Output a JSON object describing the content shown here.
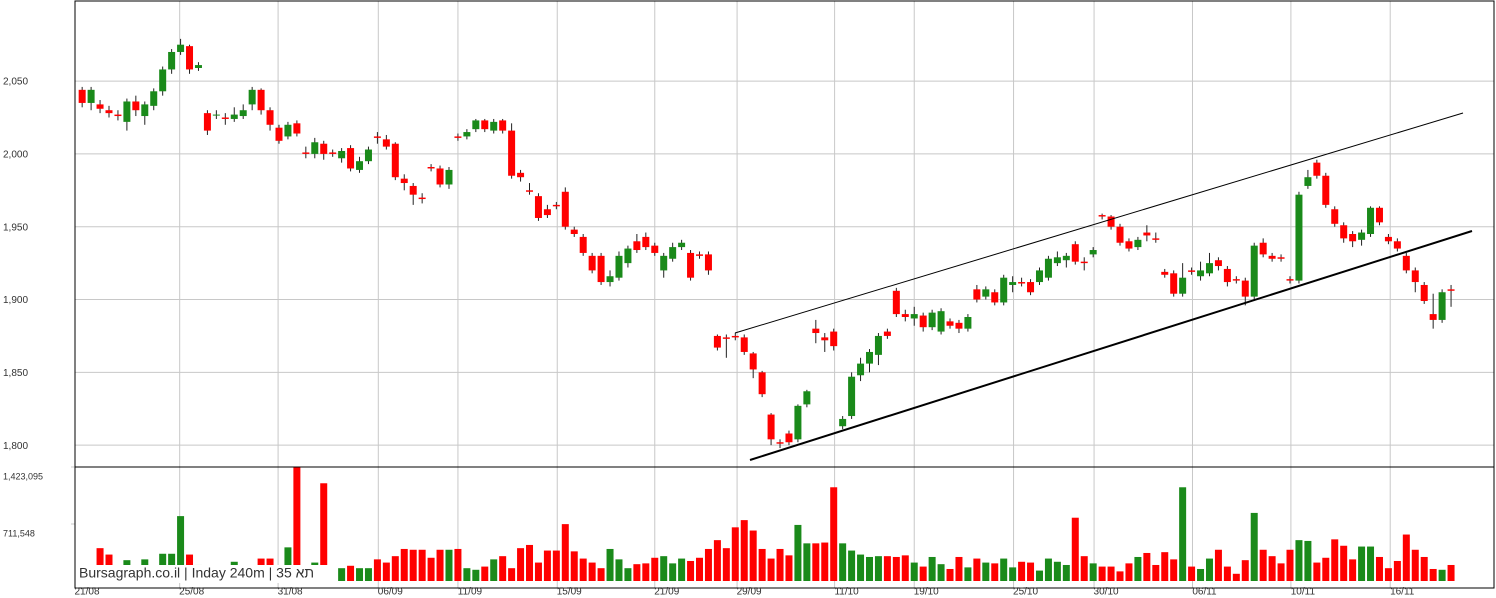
{
  "chart_data": {
    "type": "candlestick",
    "open": [
      2044,
      2035,
      2034,
      2030,
      2027,
      2022,
      2036,
      2026,
      2033,
      2043,
      2058,
      2070,
      2074,
      2059,
      2028,
      2027,
      2025,
      2024,
      2026,
      2034,
      2044,
      2030,
      2018,
      2012,
      2021,
      2001,
      2000,
      2007,
      2001,
      1997,
      2004,
      1989,
      1995,
      2012,
      2010,
      2007,
      1983,
      1978,
      1970,
      1991,
      1990,
      1979,
      2012,
      2012,
      2017,
      2023,
      2016,
      2023,
      2016,
      1987,
      1975,
      1971,
      1962,
      1965,
      1974,
      1948,
      1943,
      1930,
      1930,
      1912,
      1915,
      1925,
      1940,
      1943,
      1937,
      1920,
      1928,
      1936,
      1932,
      1931,
      1931,
      1875,
      1874,
      1875,
      1874,
      1863,
      1850,
      1821,
      1802,
      1808,
      1804,
      1828,
      1880,
      1874,
      1878,
      1813,
      1820,
      1848,
      1856,
      1862,
      1878,
      1906,
      1890,
      1887,
      1889,
      1881,
      1878,
      1885,
      1884,
      1880,
      1907,
      1902,
      1905,
      1898,
      1910,
      1912,
      1912,
      1912,
      1915,
      1925,
      1927,
      1938,
      1926,
      1931,
      1958,
      1957,
      1950,
      1940,
      1936,
      1946,
      1942,
      1919,
      1918,
      1904,
      1920,
      1916,
      1918,
      1927,
      1921,
      1914,
      1913,
      1902,
      1939,
      1930,
      1929,
      1914,
      1913,
      1978,
      1994,
      1985,
      1962,
      1951,
      1945,
      1941,
      1945,
      1963,
      1943,
      1940,
      1930,
      1920,
      1910,
      1890,
      1886,
      1907
    ],
    "high": [
      2046,
      2046,
      2037,
      2033,
      2030,
      2038,
      2040,
      2036,
      2045,
      2060,
      2072,
      2079,
      2075,
      2063,
      2030,
      2030,
      2028,
      2032,
      2034,
      2046,
      2045,
      2032,
      2020,
      2022,
      2023,
      2005,
      2011,
      2009,
      2003,
      2004,
      2006,
      1998,
      2005,
      2015,
      2013,
      2008,
      1986,
      1980,
      1973,
      1993,
      1992,
      1991,
      2014,
      2017,
      2024,
      2024,
      2024,
      2024,
      2021,
      1989,
      1980,
      1973,
      1965,
      1967,
      1977,
      1950,
      1945,
      1932,
      1932,
      1920,
      1933,
      1937,
      1945,
      1946,
      1939,
      1932,
      1939,
      1941,
      1934,
      1933,
      1933,
      1876,
      1876,
      1877,
      1876,
      1864,
      1851,
      1822,
      1804,
      1810,
      1828,
      1838,
      1886,
      1877,
      1880,
      1820,
      1850,
      1860,
      1866,
      1877,
      1880,
      1908,
      1893,
      1895,
      1891,
      1893,
      1894,
      1887,
      1886,
      1890,
      1910,
      1909,
      1907,
      1917,
      1916,
      1915,
      1914,
      1922,
      1930,
      1933,
      1932,
      1940,
      1929,
      1936,
      1959,
      1958,
      1952,
      1942,
      1943,
      1951,
      1946,
      1921,
      1920,
      1925,
      1922,
      1926,
      1932,
      1929,
      1923,
      1916,
      1915,
      1939,
      1942,
      1932,
      1931,
      1916,
      1974,
      1989,
      1996,
      1987,
      1964,
      1953,
      1947,
      1948,
      1964,
      1964,
      1945,
      1942,
      1932,
      1922,
      1912,
      1904,
      1907,
      1910
    ],
    "low": [
      2032,
      2030,
      2028,
      2025,
      2023,
      2016,
      2026,
      2020,
      2030,
      2040,
      2055,
      2068,
      2055,
      2057,
      2013,
      2024,
      2020,
      2022,
      2024,
      2030,
      2027,
      2016,
      2007,
      2010,
      2012,
      1997,
      1997,
      1996,
      1998,
      1994,
      1988,
      1987,
      1993,
      2007,
      2003,
      1982,
      1975,
      1965,
      1966,
      1988,
      1977,
      1976,
      2009,
      2010,
      2015,
      2015,
      2014,
      2014,
      1983,
      1981,
      1972,
      1954,
      1956,
      1962,
      1948,
      1943,
      1930,
      1918,
      1910,
      1909,
      1913,
      1922,
      1932,
      1934,
      1930,
      1915,
      1926,
      1934,
      1913,
      1928,
      1917,
      1865,
      1860,
      1872,
      1862,
      1846,
      1833,
      1800,
      1798,
      1800,
      1802,
      1826,
      1870,
      1864,
      1865,
      1811,
      1818,
      1844,
      1850,
      1855,
      1873,
      1888,
      1885,
      1882,
      1878,
      1879,
      1876,
      1880,
      1877,
      1878,
      1898,
      1900,
      1896,
      1896,
      1905,
      1909,
      1903,
      1910,
      1913,
      1923,
      1922,
      1924,
      1920,
      1929,
      1955,
      1948,
      1937,
      1933,
      1934,
      1940,
      1939,
      1915,
      1902,
      1902,
      1917,
      1913,
      1916,
      1920,
      1909,
      1911,
      1896,
      1900,
      1929,
      1926,
      1926,
      1911,
      1911,
      1976,
      1983,
      1963,
      1950,
      1939,
      1936,
      1937,
      1943,
      1951,
      1938,
      1933,
      1918,
      1905,
      1897,
      1880,
      1884,
      1895
    ],
    "close": [
      2035,
      2044,
      2031,
      2028,
      2026,
      2036,
      2030,
      2034,
      2043,
      2058,
      2070,
      2075,
      2058,
      2061,
      2016,
      2027,
      2024,
      2027,
      2030,
      2044,
      2030,
      2020,
      2009,
      2020,
      2014,
      2000,
      2008,
      2000,
      2000,
      2002,
      1990,
      1995,
      2003,
      2011,
      2005,
      1984,
      1980,
      1972,
      1969,
      1990,
      1979,
      1989,
      2011,
      2015,
      2023,
      2017,
      2022,
      2016,
      1985,
      1984,
      1974,
      1956,
      1958,
      1964,
      1950,
      1945,
      1932,
      1920,
      1912,
      1916,
      1930,
      1935,
      1934,
      1936,
      1932,
      1930,
      1936,
      1939,
      1915,
      1930,
      1920,
      1867,
      1873,
      1874,
      1864,
      1852,
      1835,
      1804,
      1801,
      1802,
      1827,
      1837,
      1877,
      1872,
      1868,
      1818,
      1847,
      1856,
      1864,
      1875,
      1875,
      1890,
      1888,
      1890,
      1881,
      1891,
      1892,
      1882,
      1880,
      1888,
      1900,
      1907,
      1898,
      1915,
      1912,
      1911,
      1905,
      1920,
      1928,
      1929,
      1930,
      1926,
      1925,
      1934,
      1957,
      1950,
      1939,
      1935,
      1941,
      1944,
      1941,
      1917,
      1904,
      1915,
      1919,
      1920,
      1925,
      1923,
      1912,
      1913,
      1902,
      1937,
      1931,
      1928,
      1928,
      1913,
      1972,
      1984,
      1985,
      1965,
      1952,
      1942,
      1940,
      1946,
      1963,
      1953,
      1940,
      1935,
      1920,
      1912,
      1899,
      1886,
      1905,
      1906
    ],
    "volume": [
      30000,
      20000,
      410000,
      330000,
      160000,
      260000,
      160000,
      270000,
      150000,
      340000,
      340000,
      810000,
      330000,
      200000,
      100000,
      120000,
      50000,
      240000,
      180000,
      100000,
      280000,
      280000,
      80000,
      420000,
      1420000,
      160000,
      230000,
      1220000,
      120000,
      160000,
      190000,
      160000,
      160000,
      270000,
      230000,
      310000,
      400000,
      390000,
      390000,
      290000,
      390000,
      390000,
      400000,
      160000,
      140000,
      180000,
      270000,
      310000,
      160000,
      410000,
      450000,
      230000,
      380000,
      380000,
      710000,
      370000,
      280000,
      230000,
      160000,
      400000,
      270000,
      160000,
      210000,
      220000,
      290000,
      310000,
      220000,
      280000,
      250000,
      290000,
      400000,
      510000,
      410000,
      670000,
      760000,
      630000,
      400000,
      280000,
      400000,
      320000,
      700000,
      470000,
      470000,
      480000,
      1170000,
      470000,
      380000,
      330000,
      300000,
      310000,
      310000,
      300000,
      320000,
      230000,
      180000,
      300000,
      210000,
      150000,
      300000,
      170000,
      280000,
      230000,
      220000,
      280000,
      170000,
      240000,
      230000,
      130000,
      280000,
      240000,
      200000,
      790000,
      310000,
      220000,
      180000,
      180000,
      120000,
      220000,
      300000,
      350000,
      200000,
      360000,
      270000,
      1170000,
      180000,
      150000,
      280000,
      390000,
      180000,
      90000,
      260000,
      850000,
      390000,
      310000,
      220000,
      390000,
      510000,
      500000,
      230000,
      290000,
      520000,
      440000,
      270000,
      430000,
      430000,
      300000,
      160000,
      250000,
      580000,
      390000,
      300000,
      150000,
      140000,
      200000
    ],
    "up_color": "#1a8a1a",
    "down_color": "#ff0000",
    "ylim": [
      1785,
      2105
    ],
    "yticks": [
      {
        "value": 1800,
        "label": "1,800"
      },
      {
        "value": 1850,
        "label": "1,850"
      },
      {
        "value": 1900,
        "label": "1,900"
      },
      {
        "value": 1950,
        "label": "1,950"
      },
      {
        "value": 2000,
        "label": "2,000"
      },
      {
        "value": 2050,
        "label": "2,050"
      }
    ],
    "volume_lim": [
      0,
      1423095
    ],
    "volume_ticks": [
      {
        "value": 711548,
        "label": "711,548"
      },
      {
        "value": 1423095,
        "label": "1,423,095"
      }
    ],
    "xlim": [
      -0.8,
      157.8
    ],
    "xticks": [
      {
        "value": -0.8,
        "label": "21/08"
      },
      {
        "value": 10.9,
        "label": "25/08"
      },
      {
        "value": 21.9,
        "label": "31/08"
      },
      {
        "value": 33.1,
        "label": "06/09"
      },
      {
        "value": 42,
        "label": "11/09"
      },
      {
        "value": 53.1,
        "label": "15/09"
      },
      {
        "value": 64,
        "label": "21/09"
      },
      {
        "value": 73.2,
        "label": "29/09"
      },
      {
        "value": 84.1,
        "label": "11/10"
      },
      {
        "value": 93,
        "label": "19/10"
      },
      {
        "value": 104.1,
        "label": "25/10"
      },
      {
        "value": 113.1,
        "label": "30/10"
      },
      {
        "value": 124.1,
        "label": "06/11"
      },
      {
        "value": 135.1,
        "label": "10/11"
      },
      {
        "value": 146.2,
        "label": "16/11"
      }
    ],
    "grid": true,
    "footer": "Bursagraph.co.il | Inday 240m | 35 תא"
  }
}
